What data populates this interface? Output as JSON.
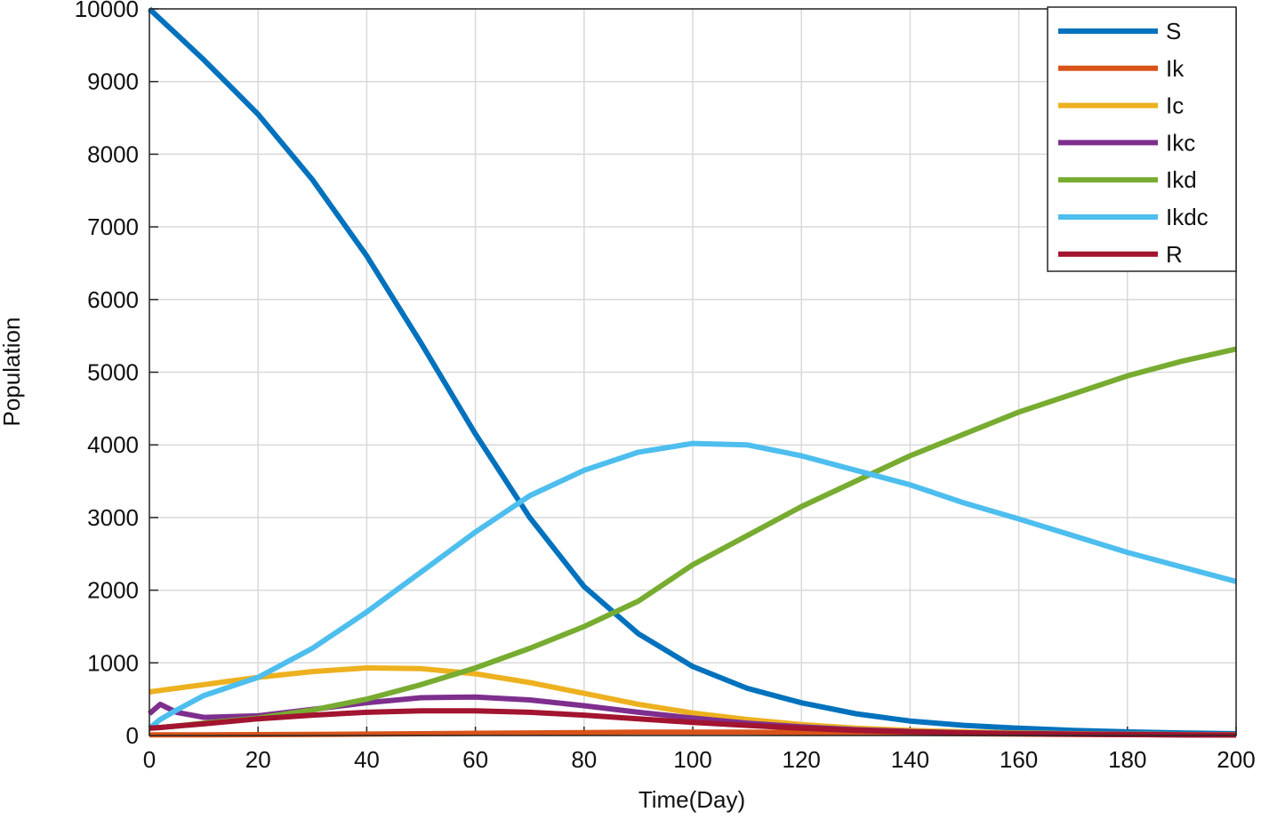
{
  "chart_data": {
    "type": "line",
    "xlabel": "Time(Day)",
    "ylabel": "Population",
    "x": [
      0,
      2,
      5,
      10,
      20,
      30,
      40,
      50,
      60,
      70,
      80,
      90,
      100,
      110,
      120,
      130,
      140,
      150,
      160,
      170,
      180,
      190,
      200
    ],
    "series": [
      {
        "name": "S",
        "color": "#0072BD",
        "values": [
          10000,
          9860,
          9650,
          9300,
          8550,
          7650,
          6600,
          5400,
          4150,
          3000,
          2050,
          1400,
          950,
          650,
          450,
          300,
          200,
          140,
          100,
          70,
          50,
          35,
          25
        ]
      },
      {
        "name": "Ik",
        "color": "#D95319",
        "values": [
          10,
          10,
          10,
          10,
          12,
          15,
          20,
          25,
          30,
          35,
          40,
          45,
          45,
          45,
          40,
          35,
          30,
          25,
          20,
          15,
          12,
          10,
          8
        ]
      },
      {
        "name": "Ic",
        "color": "#EDB120",
        "values": [
          600,
          620,
          650,
          700,
          800,
          880,
          930,
          920,
          850,
          730,
          580,
          430,
          310,
          220,
          150,
          100,
          70,
          50,
          35,
          25,
          18,
          13,
          10
        ]
      },
      {
        "name": "Ikc",
        "color": "#7E2F8E",
        "values": [
          300,
          430,
          320,
          250,
          270,
          360,
          450,
          520,
          530,
          490,
          410,
          320,
          240,
          170,
          120,
          80,
          55,
          38,
          27,
          19,
          13,
          9,
          6
        ]
      },
      {
        "name": "Ikd",
        "color": "#77AC30",
        "values": [
          100,
          110,
          130,
          170,
          240,
          350,
          500,
          700,
          930,
          1200,
          1500,
          1850,
          2350,
          2750,
          3150,
          3500,
          3850,
          4150,
          4450,
          4700,
          4950,
          5150,
          5320
        ]
      },
      {
        "name": "Ikdc",
        "color": "#4DBEEE",
        "values": [
          100,
          220,
          350,
          550,
          800,
          1200,
          1700,
          2250,
          2800,
          3300,
          3650,
          3900,
          4020,
          4000,
          3850,
          3650,
          3450,
          3200,
          2980,
          2750,
          2520,
          2320,
          2120
        ]
      },
      {
        "name": "R",
        "color": "#A2142F",
        "values": [
          100,
          110,
          130,
          160,
          230,
          280,
          320,
          340,
          340,
          320,
          280,
          230,
          180,
          140,
          100,
          70,
          50,
          35,
          25,
          18,
          13,
          9,
          6
        ]
      }
    ],
    "xlim": [
      0,
      200
    ],
    "xticks": [
      0,
      20,
      40,
      60,
      80,
      100,
      120,
      140,
      160,
      180,
      200
    ],
    "ylim": [
      0,
      10000
    ],
    "yticks": [
      0,
      1000,
      2000,
      3000,
      4000,
      5000,
      6000,
      7000,
      8000,
      9000,
      10000
    ],
    "grid": true,
    "legend": "upper right"
  }
}
